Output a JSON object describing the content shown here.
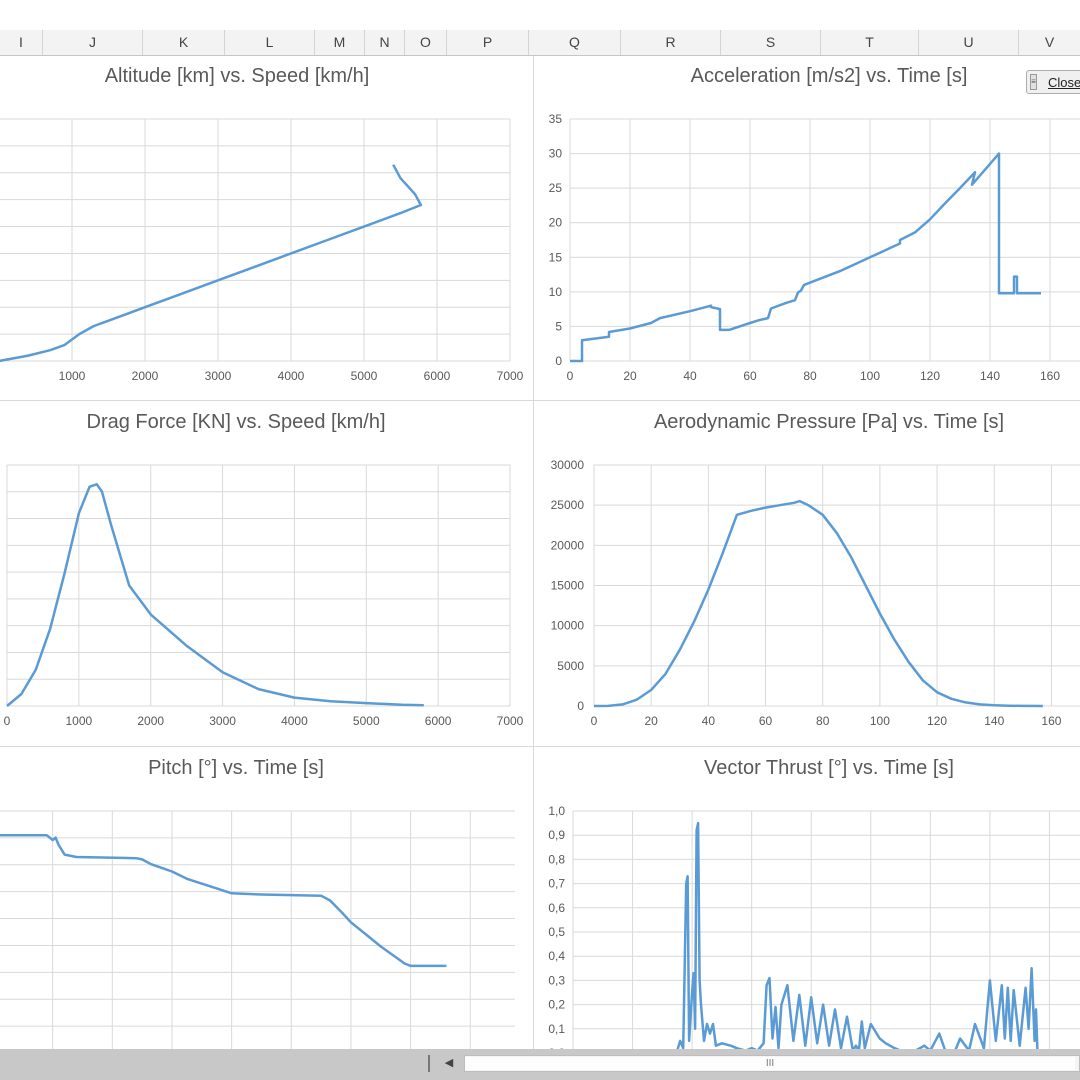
{
  "column_headers": [
    {
      "label": "I"
    },
    {
      "label": "J"
    },
    {
      "label": "K"
    },
    {
      "label": "L"
    },
    {
      "label": "M"
    },
    {
      "label": "N"
    },
    {
      "label": "O"
    },
    {
      "label": "P"
    },
    {
      "label": "Q"
    },
    {
      "label": "R"
    },
    {
      "label": "S"
    },
    {
      "label": "T"
    },
    {
      "label": "U"
    },
    {
      "label": "V"
    }
  ],
  "close_button": {
    "label": "Close",
    "grip_icon": "grip-lines-icon"
  },
  "scrollbar": {
    "thumb_label": "III",
    "left_arrow_icon": "triangle-left-icon"
  },
  "series_color": "#5b9bd5",
  "charts": [
    {
      "id": "altitude-speed",
      "title": "Altitude [km] vs. Speed [km/h]",
      "type": "line",
      "xlim": [
        0,
        7000
      ],
      "ylim": [
        0,
        90
      ],
      "x_ticks": [
        1000,
        2000,
        3000,
        4000,
        5000,
        6000,
        7000
      ],
      "y_ticks": [],
      "x_tick_labels": [
        "1000",
        "2000",
        "3000",
        "4000",
        "5000",
        "6000",
        "7000"
      ],
      "y_tick_labels": [],
      "x": [
        0,
        400,
        700,
        900,
        1100,
        1300,
        1500,
        2000,
        2500,
        3000,
        3500,
        4000,
        4500,
        5000,
        5500,
        5780,
        5700,
        5600,
        5500,
        5400
      ],
      "y": [
        0,
        2,
        4,
        6,
        10,
        13,
        15,
        20,
        25,
        30,
        35,
        40,
        45,
        50,
        55,
        58,
        62,
        65,
        68,
        73
      ]
    },
    {
      "id": "acceleration-time",
      "title": "Acceleration [m/s2] vs. Time [s]",
      "type": "line",
      "xlim": [
        0,
        170
      ],
      "ylim": [
        0,
        35
      ],
      "x_ticks": [
        0,
        20,
        40,
        60,
        80,
        100,
        120,
        140,
        160
      ],
      "y_ticks": [
        0,
        5,
        10,
        15,
        20,
        25,
        30,
        35
      ],
      "x_tick_labels": [
        "0",
        "20",
        "40",
        "60",
        "80",
        "100",
        "120",
        "140",
        "160"
      ],
      "y_tick_labels": [
        "0",
        "5",
        "10",
        "15",
        "20",
        "25",
        "30",
        "35"
      ],
      "x": [
        0,
        4,
        4,
        13,
        13,
        20,
        27,
        30,
        40,
        47,
        47,
        50,
        50,
        53,
        60,
        63,
        64,
        66,
        67,
        72,
        75,
        76,
        77,
        78,
        90,
        100,
        110,
        110,
        115,
        120,
        125,
        130,
        135,
        134,
        143,
        143,
        148,
        148,
        149,
        149,
        157
      ],
      "y": [
        0,
        0,
        3,
        3.5,
        4.2,
        4.7,
        5.5,
        6.2,
        7.2,
        8,
        7.8,
        7.5,
        4.5,
        4.5,
        5.5,
        5.9,
        6,
        6.2,
        7.6,
        8.4,
        8.8,
        9.9,
        10.2,
        11,
        13,
        15,
        17,
        17.5,
        18.6,
        20.5,
        22.8,
        25,
        27.3,
        25.5,
        30,
        9.8,
        9.8,
        12.2,
        12.2,
        9.8,
        9.8
      ]
    },
    {
      "id": "drag-speed",
      "title": "Drag Force [KN] vs. Speed [km/h]",
      "type": "line",
      "xlim": [
        0,
        7000
      ],
      "ylim": [
        0,
        100
      ],
      "x_ticks": [
        0,
        1000,
        2000,
        3000,
        4000,
        5000,
        6000,
        7000
      ],
      "y_ticks": [],
      "x_tick_labels": [
        "0",
        "1000",
        "2000",
        "3000",
        "4000",
        "5000",
        "6000",
        "7000"
      ],
      "y_tick_labels": [],
      "x": [
        0,
        200,
        400,
        600,
        800,
        1000,
        1150,
        1250,
        1320,
        1450,
        1700,
        2000,
        2500,
        3000,
        3500,
        4000,
        4500,
        5000,
        5500,
        5800
      ],
      "y": [
        0,
        5,
        15,
        32,
        55,
        80,
        91,
        92,
        89,
        75,
        50,
        38,
        25,
        14,
        7,
        3.5,
        2,
        1.2,
        0.5,
        0.3
      ]
    },
    {
      "id": "pressure-time",
      "title": "Aerodynamic Pressure [Pa] vs. Time [s]",
      "type": "line",
      "xlim": [
        0,
        170
      ],
      "ylim": [
        0,
        30000
      ],
      "x_ticks": [
        0,
        20,
        40,
        60,
        80,
        100,
        120,
        140,
        160
      ],
      "y_ticks": [
        0,
        5000,
        10000,
        15000,
        20000,
        25000,
        30000
      ],
      "x_tick_labels": [
        "0",
        "20",
        "40",
        "60",
        "80",
        "100",
        "120",
        "140",
        "160"
      ],
      "y_tick_labels": [
        "0",
        "5000",
        "10000",
        "15000",
        "20000",
        "25000",
        "30000"
      ],
      "x": [
        0,
        5,
        10,
        15,
        20,
        25,
        30,
        35,
        40,
        45,
        50,
        55,
        60,
        65,
        70,
        72,
        75,
        80,
        85,
        90,
        95,
        100,
        105,
        110,
        115,
        120,
        125,
        130,
        135,
        140,
        145,
        150,
        157
      ],
      "y": [
        0,
        10,
        200,
        800,
        2000,
        4000,
        7000,
        10500,
        14500,
        19000,
        23800,
        24300,
        24700,
        25000,
        25300,
        25500,
        25000,
        23800,
        21500,
        18500,
        15000,
        11500,
        8300,
        5500,
        3200,
        1700,
        900,
        450,
        200,
        90,
        40,
        15,
        0
      ]
    },
    {
      "id": "pitch-time",
      "title": "Pitch [°] vs. Time [s]",
      "type": "line",
      "xlim": [
        0,
        175
      ],
      "ylim": [
        0,
        100
      ],
      "x_ticks": [
        20,
        40,
        60,
        80,
        100,
        120,
        140,
        160
      ],
      "y_ticks": [],
      "x_tick_labels": [],
      "y_tick_labels": [],
      "x": [
        0,
        18,
        20,
        21,
        22,
        24,
        28,
        48,
        50,
        53,
        60,
        65,
        75,
        80,
        90,
        110,
        113,
        117,
        120,
        125,
        130,
        138,
        140,
        152
      ],
      "y": [
        90,
        90,
        88,
        89,
        86,
        82,
        81,
        80.5,
        80,
        78,
        75,
        72,
        68,
        66,
        65.5,
        65,
        63,
        58,
        54,
        49,
        44,
        37,
        36,
        36
      ]
    },
    {
      "id": "vector-thrust-time",
      "title": "Vector Thrust [°] vs. Time [s]",
      "type": "line",
      "xlim": [
        0,
        180
      ],
      "ylim": [
        0,
        1
      ],
      "x_ticks": [
        0,
        20,
        40,
        60,
        80,
        100,
        120,
        140,
        160,
        180
      ],
      "y_ticks": [
        0,
        0.1,
        0.2,
        0.3,
        0.4,
        0.5,
        0.6,
        0.7,
        0.8,
        0.9,
        1
      ],
      "x_tick_labels": [],
      "y_tick_labels": [
        "0,0",
        "0,1",
        "0,2",
        "0,3",
        "0,4",
        "0,5",
        "0,6",
        "0,7",
        "0,8",
        "0,9",
        "1,0"
      ],
      "x": [
        34,
        35,
        36,
        37,
        38,
        38.5,
        39,
        40,
        40.5,
        41,
        41.5,
        42,
        42.5,
        43,
        44,
        45,
        46,
        47,
        48,
        50,
        53,
        55,
        58,
        60,
        62,
        64,
        65,
        66,
        67,
        68,
        69,
        70,
        72,
        74,
        76,
        78,
        80,
        82,
        84,
        86,
        88,
        90,
        92,
        94,
        95,
        96,
        97,
        98,
        100,
        103,
        105,
        108,
        110,
        113,
        115,
        118,
        120,
        123,
        125,
        128,
        130,
        133,
        135,
        138,
        140,
        142,
        144,
        145,
        146,
        147,
        148,
        150,
        152,
        153,
        154,
        155,
        155.5,
        156
      ],
      "y": [
        0,
        0.01,
        0.05,
        0.02,
        0.7,
        0.73,
        0.05,
        0.25,
        0.33,
        0.1,
        0.92,
        0.95,
        0.3,
        0.2,
        0.05,
        0.12,
        0.08,
        0.12,
        0.03,
        0.04,
        0.03,
        0.02,
        0.01,
        0.02,
        0.01,
        0.04,
        0.28,
        0.31,
        0.06,
        0.19,
        0.02,
        0.2,
        0.28,
        0.05,
        0.24,
        0.03,
        0.23,
        0.04,
        0.2,
        0.03,
        0.18,
        0.02,
        0.15,
        0.01,
        0.03,
        0.01,
        0.13,
        0.02,
        0.12,
        0.06,
        0.04,
        0.02,
        0.01,
        0,
        0.01,
        0.03,
        0.01,
        0.08,
        0.01,
        0,
        0.06,
        0.01,
        0.12,
        0.02,
        0.3,
        0.05,
        0.28,
        0.06,
        0.27,
        0.05,
        0.26,
        0.03,
        0.27,
        0.1,
        0.35,
        0.05,
        0.18,
        0
      ]
    }
  ]
}
